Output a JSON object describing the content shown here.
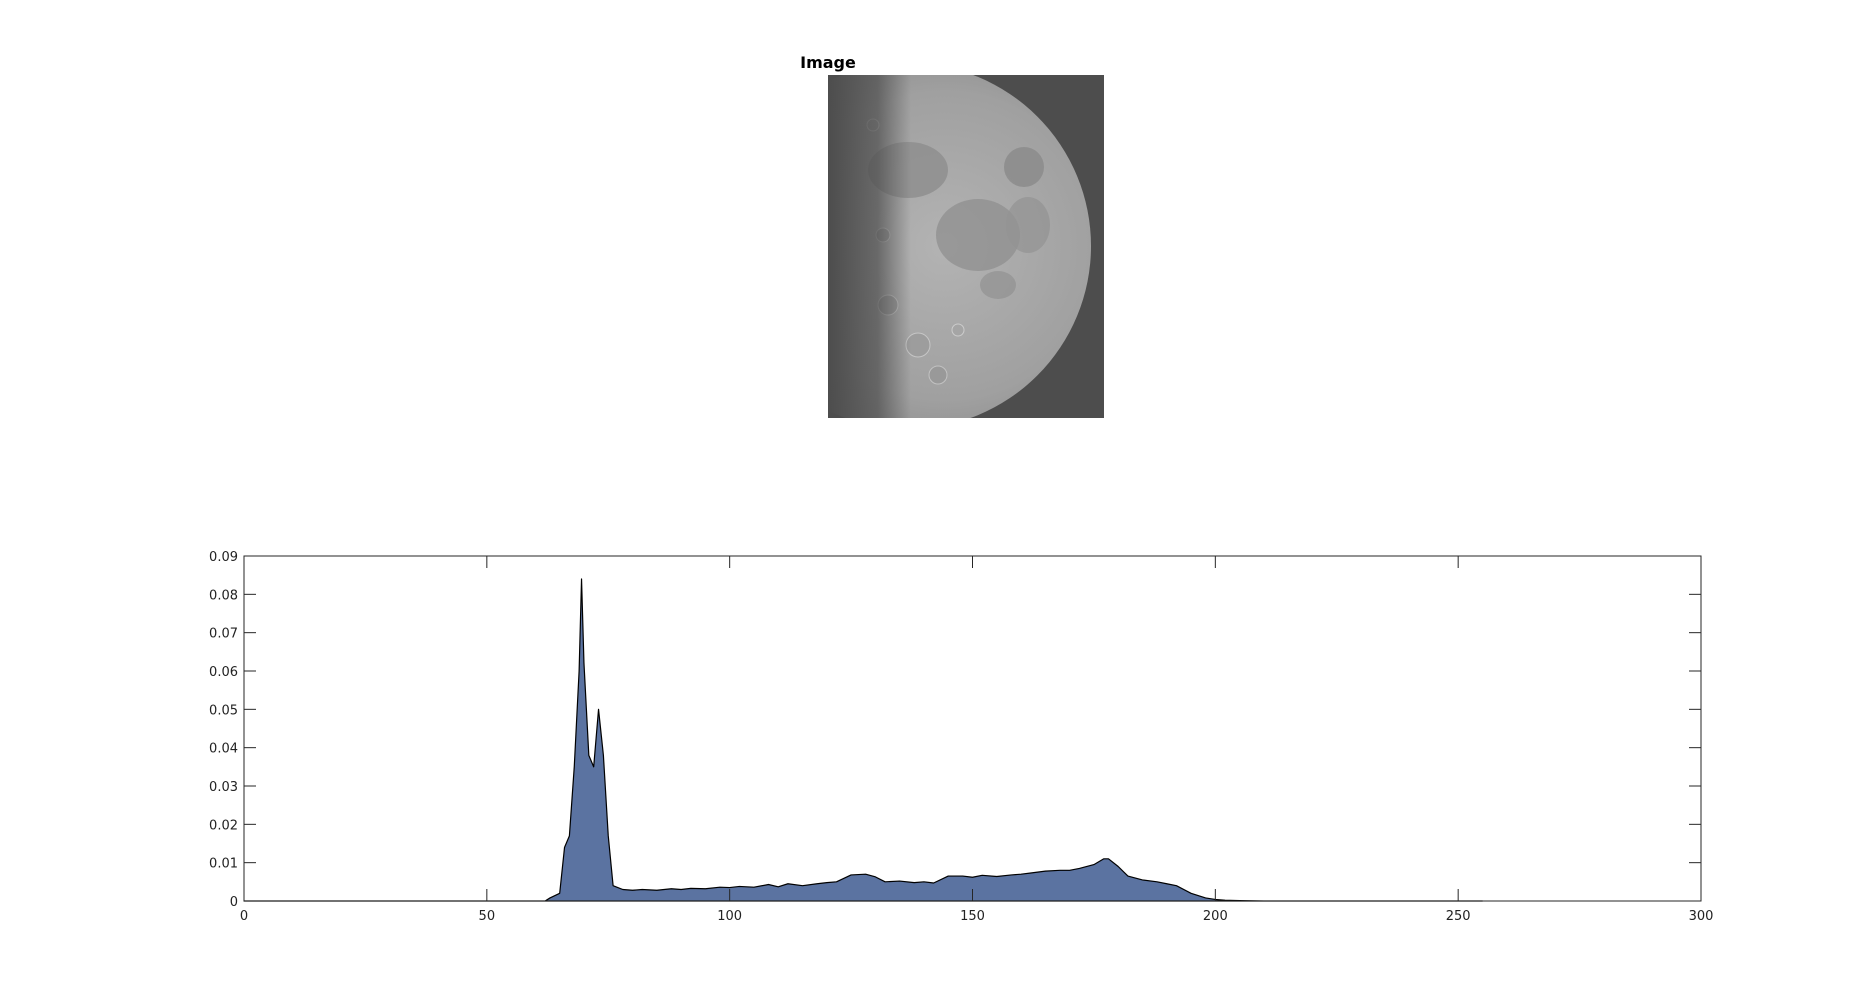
{
  "image_panel": {
    "title": "Image",
    "subject": "half-moon-grayscale"
  },
  "colors": {
    "background": "#ffffff",
    "image_background": "#4d4d4d",
    "area_fill": "#5b73a1",
    "area_stroke": "#000000"
  },
  "chart_data": {
    "type": "area",
    "title": "",
    "xlabel": "",
    "ylabel": "",
    "xlim": [
      0,
      300
    ],
    "ylim": [
      0,
      0.09
    ],
    "xticks": [
      0,
      50,
      100,
      150,
      200,
      250,
      300
    ],
    "yticks": [
      0,
      0.01,
      0.02,
      0.03,
      0.04,
      0.05,
      0.06,
      0.07,
      0.08,
      0.09
    ],
    "xtick_labels": [
      "0",
      "50",
      "100",
      "150",
      "200",
      "250",
      "300"
    ],
    "ytick_labels": [
      "0",
      "0.01",
      "0.02",
      "0.03",
      "0.04",
      "0.05",
      "0.06",
      "0.07",
      "0.08",
      "0.09"
    ],
    "grid": false,
    "series": [
      {
        "x": [
          0,
          62,
          63,
          65,
          66,
          67,
          68,
          69,
          69.5,
          70,
          71,
          72,
          73,
          74,
          75,
          76,
          78,
          80,
          82,
          85,
          88,
          90,
          92,
          95,
          98,
          100,
          102,
          105,
          108,
          110,
          112,
          115,
          118,
          120,
          122,
          125,
          128,
          130,
          132,
          135,
          138,
          140,
          142,
          145,
          148,
          150,
          152,
          155,
          158,
          160,
          162,
          165,
          168,
          170,
          172,
          175,
          177,
          178,
          180,
          182,
          185,
          188,
          190,
          192,
          195,
          198,
          200,
          202,
          205,
          210,
          220,
          230,
          240,
          250,
          255
        ],
        "values": [
          0,
          0,
          0.0008,
          0.002,
          0.014,
          0.017,
          0.035,
          0.06,
          0.084,
          0.062,
          0.038,
          0.035,
          0.05,
          0.038,
          0.017,
          0.004,
          0.003,
          0.0028,
          0.003,
          0.0028,
          0.0032,
          0.003,
          0.0033,
          0.0032,
          0.0036,
          0.0035,
          0.0038,
          0.0036,
          0.0043,
          0.0037,
          0.0045,
          0.004,
          0.0045,
          0.0048,
          0.005,
          0.0068,
          0.007,
          0.0063,
          0.005,
          0.0052,
          0.0048,
          0.005,
          0.0047,
          0.0065,
          0.0065,
          0.0062,
          0.0067,
          0.0064,
          0.0068,
          0.007,
          0.0073,
          0.0078,
          0.008,
          0.008,
          0.0085,
          0.0095,
          0.011,
          0.011,
          0.009,
          0.0065,
          0.0055,
          0.005,
          0.0045,
          0.004,
          0.002,
          0.0008,
          0.0004,
          0.0002,
          0.0001,
          0,
          0,
          0,
          0,
          0,
          0
        ]
      }
    ]
  }
}
